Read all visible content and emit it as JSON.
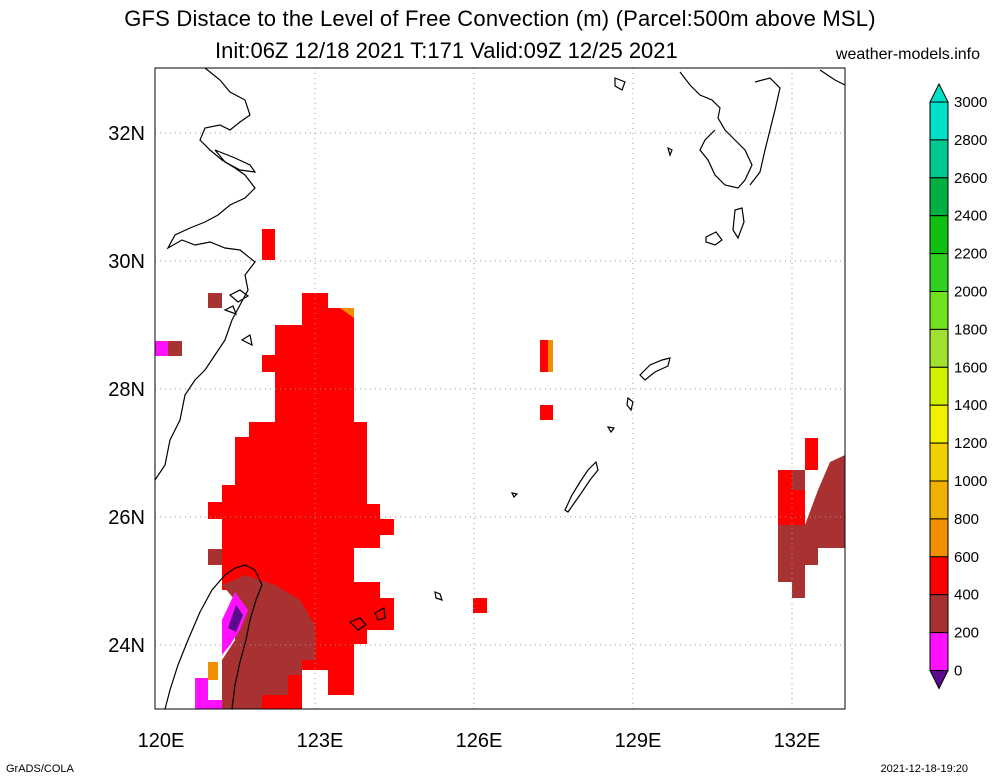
{
  "title": {
    "line1": "GFS Distace to the Level of Free Convection (m) (Parcel:500m above MSL)",
    "line2": "Init:06Z 12/18 2021 T:171 Valid:09Z 12/25 2021",
    "site": "weather-models.info"
  },
  "axes": {
    "x_ticks": [
      "120E",
      "123E",
      "126E",
      "129E",
      "132E"
    ],
    "y_ticks": [
      "32N",
      "30N",
      "28N",
      "26N",
      "24N"
    ],
    "lon_range": [
      120,
      133
    ],
    "lat_range": [
      23,
      33
    ],
    "grid": "dotted"
  },
  "colorbar": {
    "labels": [
      "3000",
      "2800",
      "2600",
      "2400",
      "2200",
      "2000",
      "1800",
      "1600",
      "1400",
      "1200",
      "1000",
      "800",
      "600",
      "400",
      "200",
      "0"
    ],
    "colors": [
      "#00e0c8",
      "#00c890",
      "#00b040",
      "#10c010",
      "#30d020",
      "#70e020",
      "#a0e030",
      "#d0f000",
      "#f0f000",
      "#f0d000",
      "#f0b000",
      "#f09000",
      "#ff0000",
      "#a83232",
      "#ff10ff",
      "#5a0a8c"
    ]
  },
  "footer": {
    "left": "GrADS/COLA",
    "right": "2021-12-18-19:20"
  }
}
